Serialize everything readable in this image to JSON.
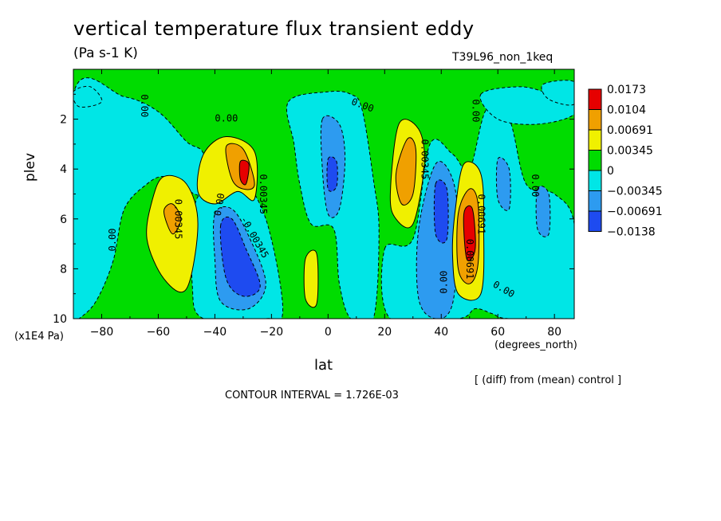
{
  "title": "vertical temperature flux transient eddy",
  "units_label": "(Pa s-1 K)",
  "run_label": "T39L96_non_1keq",
  "footnote": "[ (diff) from (mean) control ]",
  "contour_interval": "CONTOUR INTERVAL = 1.726E-03",
  "colors": {
    "red": "#e60000",
    "orange": "#f0a000",
    "yellow": "#f0f000",
    "green": "#00dc00",
    "cyan": "#00e6e6",
    "lightblue": "#2d9bf0",
    "blue": "#1e4bf0"
  },
  "chart_data": {
    "type": "heatmap",
    "title": "vertical temperature flux transient eddy",
    "xlabel": "lat",
    "ylabel": "plev",
    "x_units": "(degrees_north)",
    "y_units": "(x1E4 Pa)",
    "xlim": [
      -90,
      87
    ],
    "ylim": [
      10,
      0
    ],
    "x_ticks": [
      -80,
      -60,
      -40,
      -20,
      0,
      20,
      40,
      60,
      80
    ],
    "y_ticks": [
      2,
      4,
      6,
      8,
      10
    ],
    "legend": {
      "placement": "right",
      "boundaries": [
        "0.0173",
        "0.0104",
        "0.00691",
        "0.00345",
        "0",
        "-0.00345",
        "-0.00691",
        "-0.0138"
      ],
      "colors": [
        "#e60000",
        "#f0a000",
        "#f0f000",
        "#00dc00",
        "#00e6e6",
        "#2d9bf0",
        "#1e4bf0"
      ]
    },
    "background_color": "#00dc00",
    "regions": [
      {
        "level": "cyan",
        "points": [
          [
            -90,
            1.0
          ],
          [
            -72,
            1.1
          ],
          [
            -60,
            1.7
          ],
          [
            -50,
            2.9
          ],
          [
            -44,
            3.4
          ],
          [
            -44,
            5.0
          ],
          [
            -52,
            4.7
          ],
          [
            -58,
            4.3
          ],
          [
            -64,
            4.6
          ],
          [
            -72,
            5.6
          ],
          [
            -76,
            7.7
          ],
          [
            -82,
            9.3
          ],
          [
            -88,
            10
          ],
          [
            -90,
            10
          ]
        ]
      },
      {
        "level": "cyan",
        "points": [
          [
            -90,
            0.9
          ],
          [
            -84,
            0.7
          ],
          [
            -80,
            1.3
          ],
          [
            -88,
            1.5
          ]
        ]
      },
      {
        "level": "cyan",
        "points": [
          [
            -47,
            5.4
          ],
          [
            -40,
            4.8
          ],
          [
            -32,
            4.2
          ],
          [
            -22,
            6.0
          ],
          [
            -16,
            9.6
          ],
          [
            -22,
            10
          ],
          [
            -44,
            10
          ],
          [
            -48,
            8.6
          ]
        ]
      },
      {
        "level": "lightblue",
        "points": [
          [
            -40,
            5.8
          ],
          [
            -34,
            5.6
          ],
          [
            -28,
            6.7
          ],
          [
            -22,
            8.6
          ],
          [
            -28,
            9.6
          ],
          [
            -38,
            9.3
          ],
          [
            -40,
            7.6
          ]
        ]
      },
      {
        "level": "blue",
        "points": [
          [
            -38,
            6.3
          ],
          [
            -34,
            6.0
          ],
          [
            -29,
            7.2
          ],
          [
            -24,
            8.7
          ],
          [
            -30,
            9.1
          ],
          [
            -36,
            8.4
          ]
        ]
      },
      {
        "level": "cyan",
        "points": [
          [
            -14,
            1.3
          ],
          [
            0,
            0.9
          ],
          [
            8,
            1.0
          ],
          [
            12,
            1.6
          ],
          [
            16,
            4.4
          ],
          [
            18,
            6.5
          ],
          [
            16,
            10
          ],
          [
            8,
            10
          ],
          [
            4,
            8.6
          ],
          [
            2,
            6.4
          ],
          [
            -6,
            6.2
          ],
          [
            -10,
            4.6
          ],
          [
            -12,
            3.0
          ]
        ]
      },
      {
        "level": "lightblue",
        "points": [
          [
            -2,
            2.0
          ],
          [
            4,
            2.2
          ],
          [
            6,
            3.6
          ],
          [
            4,
            5.6
          ],
          [
            0,
            5.8
          ],
          [
            -2,
            4.0
          ]
        ]
      },
      {
        "level": "blue",
        "points": [
          [
            0,
            3.6
          ],
          [
            3,
            3.7
          ],
          [
            3,
            4.7
          ],
          [
            0,
            4.8
          ]
        ]
      },
      {
        "level": "cyan",
        "points": [
          [
            20,
            7.2
          ],
          [
            30,
            6.8
          ],
          [
            36,
            3.0
          ],
          [
            44,
            3.4
          ],
          [
            50,
            4.0
          ],
          [
            56,
            1.6
          ],
          [
            64,
            2.0
          ],
          [
            70,
            4.6
          ],
          [
            80,
            5.0
          ],
          [
            87,
            6.2
          ],
          [
            87,
            10
          ],
          [
            64,
            10
          ],
          [
            58,
            9.8
          ],
          [
            52,
            9.6
          ],
          [
            46,
            10
          ],
          [
            22,
            10
          ]
        ]
      },
      {
        "level": "cyan",
        "points": [
          [
            54,
            1.0
          ],
          [
            68,
            0.7
          ],
          [
            80,
            1.0
          ],
          [
            87,
            0.9
          ],
          [
            87,
            1.8
          ],
          [
            74,
            2.2
          ],
          [
            60,
            2.0
          ]
        ]
      },
      {
        "level": "cyan",
        "points": [
          [
            76,
            0.6
          ],
          [
            87,
            0.5
          ],
          [
            87,
            1.4
          ],
          [
            78,
            1.2
          ]
        ]
      },
      {
        "level": "lightblue",
        "points": [
          [
            32,
            6.4
          ],
          [
            38,
            3.8
          ],
          [
            44,
            4.4
          ],
          [
            46,
            6.4
          ],
          [
            44,
            9.4
          ],
          [
            38,
            10
          ],
          [
            32,
            9.2
          ]
        ]
      },
      {
        "level": "blue",
        "points": [
          [
            38,
            4.6
          ],
          [
            42,
            4.8
          ],
          [
            42,
            6.8
          ],
          [
            38,
            6.6
          ]
        ]
      },
      {
        "level": "lightblue",
        "points": [
          [
            60,
            3.6
          ],
          [
            64,
            4.0
          ],
          [
            64,
            5.6
          ],
          [
            60,
            5.2
          ]
        ]
      },
      {
        "level": "lightblue",
        "points": [
          [
            74,
            4.8
          ],
          [
            78,
            5.0
          ],
          [
            78,
            6.6
          ],
          [
            74,
            6.4
          ]
        ]
      },
      {
        "level": "yellow",
        "points": [
          [
            -62,
            5.2
          ],
          [
            -58,
            4.3
          ],
          [
            -50,
            4.6
          ],
          [
            -46,
            6.2
          ],
          [
            -50,
            8.8
          ],
          [
            -58,
            8.4
          ],
          [
            -64,
            6.8
          ]
        ]
      },
      {
        "level": "orange",
        "points": [
          [
            -58,
            5.7
          ],
          [
            -55,
            5.4
          ],
          [
            -52,
            6.0
          ],
          [
            -55,
            6.6
          ]
        ]
      },
      {
        "level": "yellow",
        "points": [
          [
            -44,
            3.4
          ],
          [
            -36,
            2.7
          ],
          [
            -26,
            3.3
          ],
          [
            -26,
            5.2
          ],
          [
            -32,
            4.9
          ],
          [
            -40,
            5.4
          ],
          [
            -46,
            4.9
          ]
        ]
      },
      {
        "level": "orange",
        "points": [
          [
            -36,
            3.1
          ],
          [
            -30,
            3.2
          ],
          [
            -26,
            4.6
          ],
          [
            -30,
            4.8
          ],
          [
            -34,
            4.4
          ]
        ]
      },
      {
        "level": "red",
        "points": [
          [
            -31,
            3.7
          ],
          [
            -28,
            3.8
          ],
          [
            -29,
            4.6
          ],
          [
            -31,
            4.4
          ]
        ]
      },
      {
        "level": "yellow",
        "points": [
          [
            -8,
            7.6
          ],
          [
            -4,
            7.4
          ],
          [
            -4,
            9.4
          ],
          [
            -8,
            9.2
          ]
        ]
      },
      {
        "level": "yellow",
        "points": [
          [
            22,
            5.0
          ],
          [
            25,
            2.2
          ],
          [
            32,
            2.4
          ],
          [
            34,
            3.8
          ],
          [
            30,
            6.2
          ],
          [
            24,
            6.0
          ]
        ]
      },
      {
        "level": "orange",
        "points": [
          [
            24,
            4.2
          ],
          [
            28,
            2.8
          ],
          [
            31,
            3.2
          ],
          [
            30,
            5.0
          ],
          [
            26,
            5.4
          ]
        ]
      },
      {
        "level": "yellow",
        "points": [
          [
            45,
            5.6
          ],
          [
            48,
            3.8
          ],
          [
            54,
            4.2
          ],
          [
            55,
            6.4
          ],
          [
            54,
            9.0
          ],
          [
            46,
            9.0
          ],
          [
            44,
            7.4
          ]
        ]
      },
      {
        "level": "orange",
        "points": [
          [
            46,
            5.8
          ],
          [
            50,
            4.8
          ],
          [
            53,
            5.4
          ],
          [
            53,
            7.8
          ],
          [
            50,
            8.6
          ],
          [
            46,
            8.0
          ]
        ]
      },
      {
        "level": "red",
        "points": [
          [
            48,
            5.8
          ],
          [
            51,
            5.6
          ],
          [
            52,
            7.2
          ],
          [
            49,
            7.6
          ]
        ]
      }
    ],
    "labels": [
      {
        "text": "0.00",
        "lat": -66,
        "plev": 1.0,
        "angle": 90
      },
      {
        "text": "0.00",
        "lat": -40,
        "plev": 2.1,
        "angle": 0
      },
      {
        "text": "0.00",
        "lat": 8,
        "plev": 1.4,
        "angle": 20
      },
      {
        "text": "0.00",
        "lat": 51,
        "plev": 1.2,
        "angle": 90
      },
      {
        "text": "0.00",
        "lat": -75,
        "plev": 7.3,
        "angle": -90
      },
      {
        "text": "0.00",
        "lat": -38,
        "plev": 5.9,
        "angle": -80
      },
      {
        "text": "0.00",
        "lat": 42,
        "plev": 9.0,
        "angle": -90
      },
      {
        "text": "0.00",
        "lat": 58,
        "plev": 8.7,
        "angle": 30
      },
      {
        "text": "0.00",
        "lat": 72,
        "plev": 4.2,
        "angle": 90
      },
      {
        "text": "0.00345",
        "lat": -54,
        "plev": 5.2,
        "angle": 90
      },
      {
        "text": "0.00345",
        "lat": -24,
        "plev": 4.2,
        "angle": 90
      },
      {
        "text": "0.00345",
        "lat": 33,
        "plev": 2.8,
        "angle": 90
      },
      {
        "text": "-0.00345",
        "lat": -31,
        "plev": 6.0,
        "angle": 60
      },
      {
        "text": "0.00691",
        "lat": 53,
        "plev": 5.0,
        "angle": 90
      },
      {
        "text": "0.00691",
        "lat": 49,
        "plev": 6.8,
        "angle": 90
      }
    ]
  }
}
